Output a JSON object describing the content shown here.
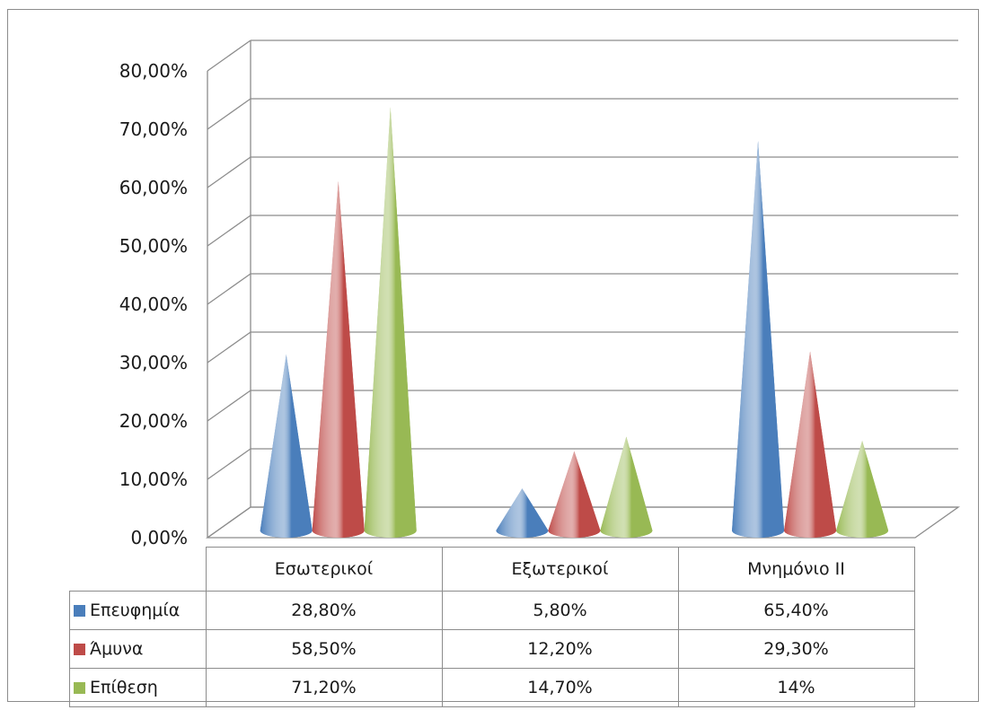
{
  "chart_data": {
    "type": "bar",
    "style": "3d-cone",
    "categories": [
      "Εσωτερικοί",
      "Εξωτερικοί",
      "Μνημόνιο ΙΙ"
    ],
    "series": [
      {
        "name": "Επευφημία",
        "color": "#4a7ebb",
        "values": [
          28.8,
          5.8,
          65.4
        ],
        "labels": [
          "28,80%",
          "5,80%",
          "65,40%"
        ]
      },
      {
        "name": "Άμυνα",
        "color": "#be4b48",
        "values": [
          58.5,
          12.2,
          29.3
        ],
        "labels": [
          "58,50%",
          "12,20%",
          "29,30%"
        ]
      },
      {
        "name": "Επίθεση",
        "color": "#98b954",
        "values": [
          71.2,
          14.7,
          14.0
        ],
        "labels": [
          "71,20%",
          "14,70%",
          "14%"
        ]
      }
    ],
    "ylim": [
      0,
      80
    ],
    "yticks": [
      "0,00%",
      "10,00%",
      "20,00%",
      "30,00%",
      "40,00%",
      "50,00%",
      "60,00%",
      "70,00%",
      "80,00%"
    ],
    "grid": true,
    "legend": "data-table-below"
  }
}
